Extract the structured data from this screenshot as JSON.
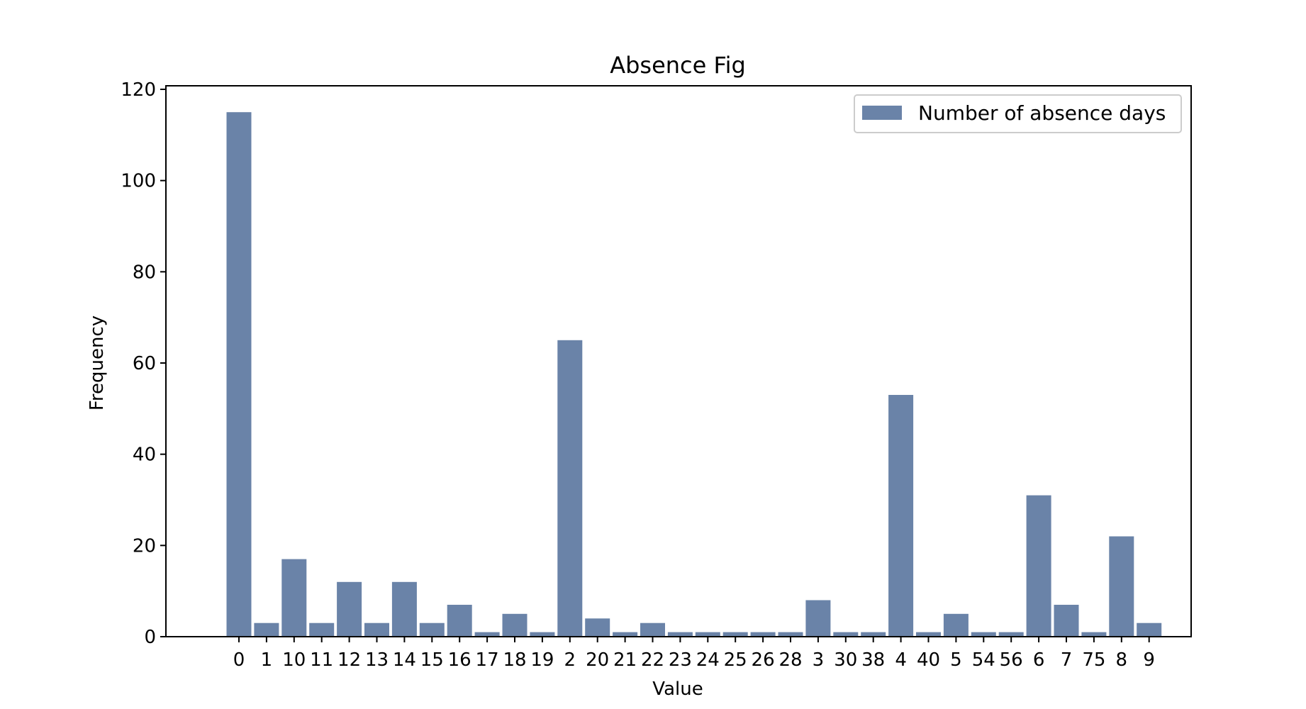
{
  "chart_data": {
    "type": "bar",
    "title": "Absence Fig",
    "xlabel": "Value",
    "ylabel": "Frequency",
    "categories": [
      "0",
      "1",
      "10",
      "11",
      "12",
      "13",
      "14",
      "15",
      "16",
      "17",
      "18",
      "19",
      "2",
      "20",
      "21",
      "22",
      "23",
      "24",
      "25",
      "26",
      "28",
      "3",
      "30",
      "38",
      "4",
      "40",
      "5",
      "54",
      "56",
      "6",
      "7",
      "75",
      "8",
      "9"
    ],
    "series": [
      {
        "name": "Number of absence days",
        "values": [
          115,
          3,
          17,
          3,
          12,
          3,
          12,
          3,
          7,
          1,
          5,
          1,
          65,
          4,
          1,
          3,
          1,
          1,
          1,
          1,
          1,
          8,
          1,
          1,
          53,
          1,
          5,
          1,
          1,
          31,
          7,
          1,
          22,
          3
        ],
        "color": "#6a83a8"
      }
    ],
    "ylim": [
      0,
      120
    ],
    "yticks": [
      0,
      20,
      40,
      60,
      80,
      100,
      120
    ],
    "grid": false,
    "legend_position": "top-right"
  }
}
